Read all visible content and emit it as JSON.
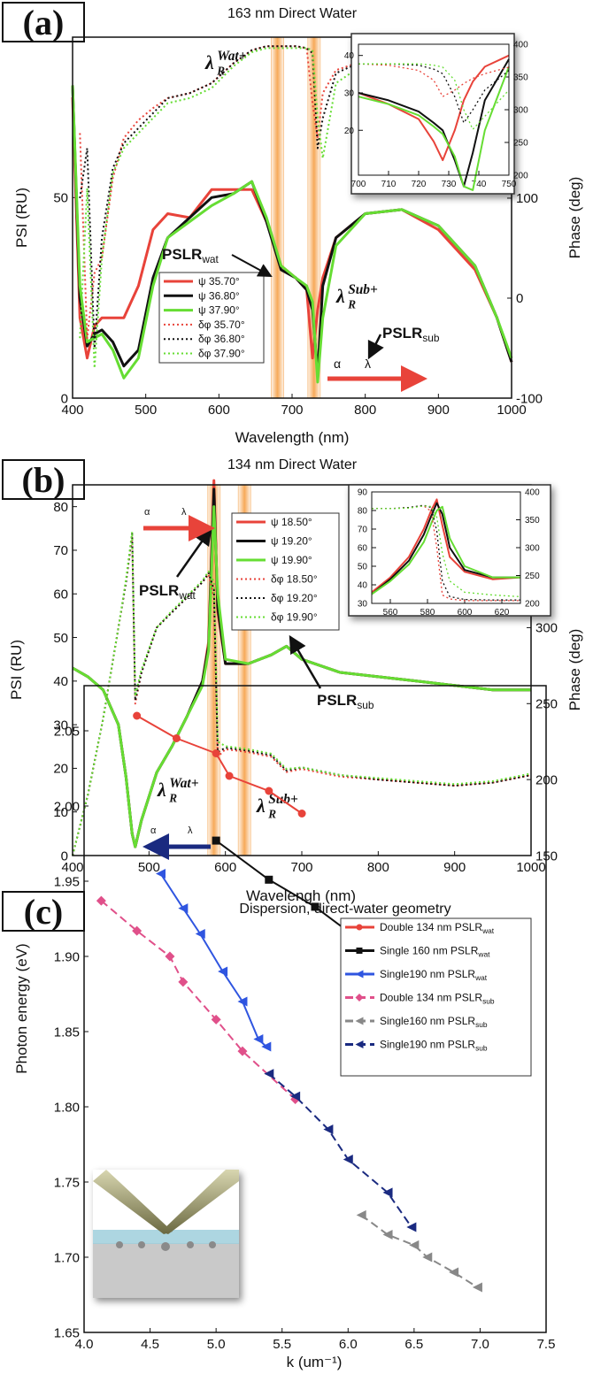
{
  "chart_data": [
    {
      "type": "line",
      "panel_label": "(a)",
      "title": "163 nm Direct Water",
      "x_label": "Wavelength (nm)",
      "y_label": "PSI (RU)",
      "y2_label": "Phase (deg)",
      "xlim": [
        400,
        1000
      ],
      "xticks": [
        400,
        500,
        600,
        700,
        800,
        900,
        1000
      ],
      "ylim": [
        0,
        90
      ],
      "yticks": [
        0,
        50
      ],
      "y2lim": [
        -100,
        261
      ],
      "y2ticks": [
        -100,
        0,
        100
      ],
      "highlight_x": [
        680,
        730
      ],
      "highlight_color": "#f59a3c",
      "x": [
        400,
        410,
        420,
        430,
        440,
        455,
        470,
        490,
        510,
        530,
        560,
        590,
        620,
        645,
        665,
        685,
        705,
        720,
        728,
        735,
        742,
        760,
        800,
        850,
        900,
        950,
        980,
        1000
      ],
      "series": [
        {
          "name": "ψ 35.70°",
          "color": "#e8433a",
          "style": "solid",
          "values": [
            75,
            20,
            10,
            18,
            20,
            20,
            20,
            28,
            42,
            46,
            45,
            52,
            52,
            52,
            44,
            33,
            30,
            27,
            10,
            22,
            30,
            40,
            46,
            47,
            42,
            32,
            20,
            9
          ]
        },
        {
          "name": "ψ 36.80°",
          "color": "#111111",
          "style": "solid",
          "values": [
            78,
            25,
            13,
            16,
            17,
            14,
            8,
            12,
            30,
            40,
            45,
            50,
            51,
            54,
            44,
            32,
            30,
            27,
            22,
            6,
            28,
            40,
            46,
            47,
            43,
            33,
            20,
            9
          ]
        },
        {
          "name": "ψ 37.90°",
          "color": "#66dd33",
          "style": "solid",
          "values": [
            78,
            28,
            14,
            15,
            16,
            12,
            5,
            10,
            28,
            40,
            44,
            48,
            51,
            54,
            45,
            33,
            30,
            28,
            24,
            4,
            20,
            38,
            46,
            47,
            43,
            33,
            20,
            10
          ]
        },
        {
          "name": "δφ 35.70°",
          "color": "#e8433a",
          "style": "dotted",
          "axis": "y2",
          "values": [
            null,
            165,
            -40,
            25,
            40,
            120,
            160,
            178,
            190,
            200,
            205,
            215,
            235,
            248,
            252,
            252,
            252,
            250,
            195,
            160,
            205,
            228,
            238,
            238,
            238,
            238,
            238,
            238
          ]
        },
        {
          "name": "δφ 36.80°",
          "color": "#111111",
          "style": "dotted",
          "axis": "y2",
          "values": [
            null,
            100,
            150,
            -50,
            60,
            130,
            155,
            170,
            185,
            200,
            205,
            215,
            235,
            248,
            252,
            252,
            252,
            250,
            245,
            150,
            180,
            225,
            238,
            238,
            238,
            238,
            238,
            238
          ]
        },
        {
          "name": "δφ 37.90°",
          "color": "#66dd33",
          "style": "dotted",
          "axis": "y2",
          "values": [
            null,
            -40,
            110,
            -70,
            40,
            125,
            150,
            165,
            180,
            195,
            200,
            210,
            232,
            246,
            250,
            250,
            250,
            250,
            248,
            180,
            140,
            215,
            235,
            235,
            235,
            235,
            235,
            235
          ]
        }
      ],
      "annotations": [
        {
          "text": "λ",
          "sub": "R",
          "sup": "Wat+"
        },
        {
          "text": "PSLR",
          "sub": "wat"
        },
        {
          "text": "λ",
          "sub": "R",
          "sup": "Sub+"
        },
        {
          "text": "PSLR",
          "sub": "sub"
        },
        {
          "text": "α"
        },
        {
          "text": "λ"
        }
      ]
    },
    {
      "type": "line",
      "xlim": [
        700,
        750
      ],
      "xticks": [
        700,
        710,
        720,
        730,
        740,
        750
      ],
      "ylim": [
        8,
        43
      ],
      "yticks": [
        20,
        30,
        40
      ],
      "y2lim": [
        200,
        400
      ],
      "y2ticks": [
        200,
        250,
        300,
        350,
        400
      ],
      "x": [
        700,
        710,
        720,
        725,
        728,
        732,
        735,
        738,
        742,
        750
      ],
      "series": [
        {
          "color": "#e8433a",
          "style": "solid",
          "values": [
            30,
            27,
            23,
            17,
            12,
            20,
            28,
            33,
            37,
            40
          ]
        },
        {
          "color": "#111111",
          "style": "solid",
          "values": [
            30,
            28,
            25,
            22,
            20,
            12,
            5,
            14,
            28,
            39
          ]
        },
        {
          "color": "#66dd33",
          "style": "solid",
          "values": [
            29,
            27,
            24,
            21,
            19,
            13,
            5,
            4,
            20,
            37
          ]
        },
        {
          "color": "#e8433a",
          "style": "dotted",
          "axis": "y2",
          "values": [
            370,
            368,
            360,
            345,
            320,
            330,
            340,
            348,
            355,
            365
          ]
        },
        {
          "color": "#111111",
          "style": "dotted",
          "axis": "y2",
          "values": [
            370,
            370,
            368,
            362,
            355,
            320,
            280,
            300,
            330,
            360
          ]
        },
        {
          "color": "#66dd33",
          "style": "dotted",
          "axis": "y2",
          "values": [
            370,
            370,
            370,
            368,
            365,
            345,
            300,
            270,
            290,
            330
          ]
        }
      ]
    },
    {
      "type": "line",
      "panel_label": "(b)",
      "title": "134 nm Direct Water",
      "x_label": "Wavelengh (nm)",
      "y_label": "PSI (RU)",
      "y2_label": "Phase (deg)",
      "xlim": [
        400,
        1000
      ],
      "xticks": [
        400,
        500,
        600,
        700,
        800,
        900,
        1000
      ],
      "ylim": [
        0,
        85
      ],
      "yticks": [
        0,
        10,
        20,
        30,
        40,
        50,
        60,
        70,
        80
      ],
      "y2lim": [
        150,
        394
      ],
      "y2ticks": [
        150,
        200,
        250,
        300
      ],
      "highlight_x": [
        585,
        625
      ],
      "highlight_color": "#f59a3c",
      "x": [
        400,
        420,
        440,
        460,
        470,
        478,
        482,
        490,
        510,
        530,
        550,
        570,
        578,
        585,
        590,
        600,
        630,
        660,
        680,
        700,
        750,
        800,
        850,
        900,
        950,
        1000
      ],
      "series": [
        {
          "name": "ψ 18.50°",
          "color": "#e8433a",
          "style": "solid",
          "values": [
            43,
            41,
            38,
            30,
            18,
            5,
            2,
            8,
            19,
            25,
            32,
            40,
            49,
            86,
            56,
            44,
            44,
            46,
            48,
            45,
            42,
            41,
            40,
            39,
            38,
            38
          ]
        },
        {
          "name": "ψ 19.20°",
          "color": "#111111",
          "style": "solid",
          "values": [
            43,
            41,
            38,
            30,
            18,
            5,
            2,
            8,
            19,
            25,
            32,
            40,
            48,
            84,
            57,
            44,
            44,
            46,
            48,
            45,
            42,
            41,
            40,
            39,
            38,
            38
          ]
        },
        {
          "name": "ψ 19.90°",
          "color": "#66dd33",
          "style": "solid",
          "values": [
            43,
            41,
            38,
            30,
            18,
            5,
            2,
            8,
            19,
            25,
            32,
            39,
            47,
            80,
            60,
            45,
            44,
            46,
            48,
            45,
            42,
            41,
            40,
            39,
            38,
            38
          ]
        },
        {
          "name": "δφ 18.50°",
          "color": "#e8433a",
          "style": "dotted",
          "axis": "y2",
          "values": [
            150,
            190,
            240,
            300,
            330,
            360,
            250,
            270,
            300,
            310,
            320,
            330,
            335,
            320,
            215,
            220,
            218,
            215,
            205,
            207,
            202,
            200,
            198,
            196,
            198,
            203
          ]
        },
        {
          "name": "δφ 19.20°",
          "color": "#111111",
          "style": "dotted",
          "axis": "y2",
          "values": [
            150,
            190,
            240,
            300,
            330,
            362,
            252,
            270,
            300,
            310,
            320,
            330,
            336,
            325,
            218,
            221,
            219,
            216,
            206,
            208,
            203,
            200,
            198,
            196,
            198,
            203
          ]
        },
        {
          "name": "δφ 19.90°",
          "color": "#66dd33",
          "style": "dotted",
          "axis": "y2",
          "values": [
            150,
            190,
            240,
            300,
            332,
            363,
            255,
            272,
            300,
            311,
            321,
            331,
            337,
            330,
            225,
            222,
            220,
            217,
            207,
            208,
            203,
            201,
            199,
            197,
            199,
            204
          ]
        }
      ],
      "annotations": [
        {
          "text": "λ",
          "sub": "R",
          "sup": "Wat+"
        },
        {
          "text": "PSLR",
          "sub": "wat"
        },
        {
          "text": "λ",
          "sub": "R",
          "sup": "Sub+"
        },
        {
          "text": "PSLR",
          "sub": "sub"
        },
        {
          "text": "α"
        },
        {
          "text": "λ"
        },
        {
          "text": "α"
        },
        {
          "text": "λ"
        }
      ]
    },
    {
      "type": "line",
      "xlim": [
        550,
        630
      ],
      "xticks": [
        560,
        580,
        600,
        620
      ],
      "ylim": [
        30,
        90
      ],
      "yticks": [
        30,
        40,
        50,
        60,
        70,
        80,
        90
      ],
      "y2lim": [
        200,
        400
      ],
      "y2ticks": [
        200,
        250,
        300,
        350,
        400
      ],
      "x": [
        550,
        560,
        570,
        578,
        582,
        585,
        588,
        592,
        600,
        615,
        630
      ],
      "series": [
        {
          "color": "#e8433a",
          "style": "solid",
          "values": [
            36,
            44,
            55,
            70,
            80,
            86,
            72,
            55,
            47,
            43,
            44
          ]
        },
        {
          "color": "#111111",
          "style": "solid",
          "values": [
            35,
            43,
            53,
            67,
            77,
            84,
            78,
            60,
            48,
            44,
            44
          ]
        },
        {
          "color": "#66dd33",
          "style": "solid",
          "values": [
            35,
            42,
            51,
            63,
            73,
            80,
            82,
            65,
            50,
            44,
            44
          ]
        },
        {
          "color": "#e8433a",
          "style": "dotted",
          "axis": "y2",
          "values": [
            370,
            370,
            372,
            375,
            365,
            300,
            215,
            208,
            205,
            205,
            205
          ]
        },
        {
          "color": "#111111",
          "style": "dotted",
          "axis": "y2",
          "values": [
            370,
            370,
            372,
            376,
            372,
            330,
            240,
            212,
            207,
            206,
            206
          ]
        },
        {
          "color": "#66dd33",
          "style": "dotted",
          "axis": "y2",
          "values": [
            370,
            370,
            371,
            375,
            374,
            355,
            290,
            240,
            220,
            215,
            212
          ]
        }
      ]
    },
    {
      "type": "scatter",
      "panel_label": "(c)",
      "title": "Dispersion, direct-water geometry",
      "x_label": "k (um⁻¹)",
      "y_label": "Photon energy (eV)",
      "xlim": [
        4.0,
        7.5
      ],
      "xticks": [
        {
          "value": 4,
          "label": "4.0"
        },
        4.5,
        {
          "value": 5,
          "label": "5.0"
        },
        5.5,
        {
          "value": 6,
          "label": "6.0"
        },
        6.5,
        {
          "value": 7,
          "label": "7.0"
        },
        7.5
      ],
      "ylim": [
        1.65,
        2.08
      ],
      "yticks": [
        1.65,
        {
          "value": 1.7,
          "label": "1.70"
        },
        1.75,
        {
          "value": 1.8,
          "label": "1.80"
        },
        1.85,
        {
          "value": 1.9,
          "label": "1.90"
        },
        1.95,
        {
          "value": 2,
          "label": "2.00"
        },
        2.05
      ],
      "series": [
        {
          "name": "Double 134 nm PSLR",
          "name_sub": "wat",
          "color": "#e8433a",
          "style": "solid",
          "marker": "circle",
          "x": [
            4.4,
            4.7,
            5.0,
            5.1,
            5.4,
            5.65
          ],
          "values": [
            2.06,
            2.045,
            2.035,
            2.02,
            2.01,
            1.995
          ]
        },
        {
          "name": "Single 160 nm PSLR",
          "name_sub": "wat",
          "color": "#111111",
          "style": "solid",
          "marker": "square",
          "x": [
            5.0,
            5.4,
            5.75,
            6.1,
            6.45,
            6.65,
            6.85,
            7.0
          ],
          "values": [
            1.977,
            1.951,
            1.933,
            1.91,
            1.873,
            1.866,
            1.852,
            1.836
          ]
        },
        {
          "name": "Single190 nm PSLR",
          "name_sub": "wat",
          "color": "#2f55e0",
          "style": "solid",
          "marker": "triangle",
          "x": [
            4.58,
            4.75,
            4.88,
            5.05,
            5.2,
            5.32,
            5.38
          ],
          "values": [
            1.955,
            1.932,
            1.915,
            1.89,
            1.87,
            1.845,
            1.84
          ]
        },
        {
          "name": "Double 134 nm PSLR",
          "name_sub": "sub",
          "color": "#e0508a",
          "style": "dashed",
          "marker": "diamond",
          "x": [
            4.13,
            4.4,
            4.65,
            4.75,
            5.0,
            5.2,
            5.6
          ],
          "values": [
            1.937,
            1.917,
            1.9,
            1.883,
            1.858,
            1.837,
            1.805
          ]
        },
        {
          "name": "Single160 nm PSLR",
          "name_sub": "sub",
          "color": "#888888",
          "style": "dashed",
          "marker": "triangle",
          "x": [
            6.1,
            6.3,
            6.5,
            6.6,
            6.8,
            6.98
          ],
          "values": [
            1.728,
            1.715,
            1.708,
            1.7,
            1.69,
            1.68
          ]
        },
        {
          "name": "Single190 nm PSLR",
          "name_sub": "sub",
          "color": "#1a2a80",
          "style": "dashed",
          "marker": "triangle",
          "x": [
            5.4,
            5.6,
            5.85,
            6.0,
            6.3,
            6.48
          ],
          "values": [
            1.822,
            1.807,
            1.785,
            1.765,
            1.743,
            1.72
          ]
        }
      ]
    }
  ]
}
